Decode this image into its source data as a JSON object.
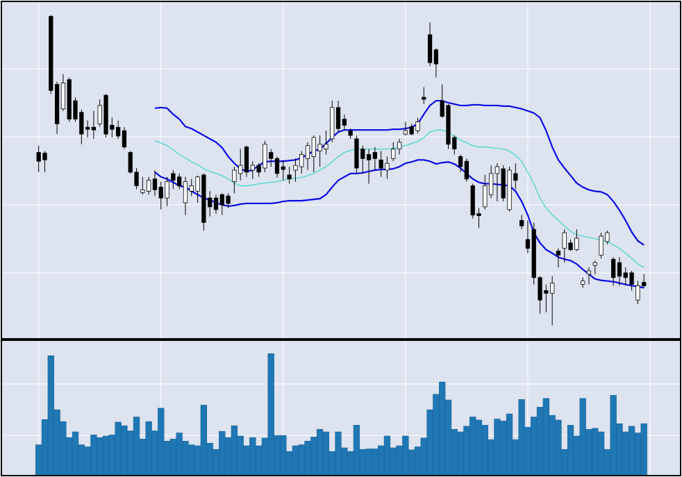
{
  "chart_data": [
    {
      "type": "candlestick",
      "xlim": [
        -6.1,
        105
      ],
      "xticks": [
        0,
        20,
        40,
        60,
        80,
        100
      ],
      "ylim": [
        0.03,
        4.99
      ],
      "yticks": [
        1,
        2,
        3,
        4
      ],
      "grid": true,
      "background": "#dde3ef",
      "up_color": "#ffffff",
      "down_color": "#000000",
      "open": [
        2.77,
        2.76,
        4.77,
        3.77,
        3.41,
        3.84,
        3.53,
        3.36,
        3.14,
        3.14,
        3.19,
        3.61,
        3.17,
        3.14,
        3.09,
        2.77,
        2.48,
        2.18,
        2.2,
        2.38,
        2.26,
        2.1,
        2.46,
        2.41,
        2.03,
        2.2,
        2.2,
        2.44,
        2.1,
        2.1,
        2.15,
        2.13,
        2.34,
        2.46,
        2.85,
        2.51,
        2.58,
        2.54,
        2.77,
        2.68,
        2.56,
        2.44,
        2.51,
        2.56,
        2.68,
        2.71,
        2.79,
        2.82,
        2.97,
        3.43,
        3.26,
        3.09,
        2.97,
        2.82,
        2.74,
        2.77,
        2.66,
        2.51,
        2.68,
        2.82,
        3.04,
        3.15,
        3.09,
        3.58,
        4.5,
        4.28,
        3.53,
        3.46,
        2.99,
        2.71,
        2.64,
        2.28,
        1.87,
        1.97,
        2.15,
        2.46,
        2.53,
        1.93,
        2.46,
        1.77,
        1.49,
        1.64,
        0.93,
        0.74,
        0.7,
        1.32,
        1.36,
        1.44,
        1.34,
        0.83,
        0.98,
        1.11,
        1.26,
        1.46,
        1.2,
        1.15,
        1.0,
        1.0,
        0.6,
        0.86
      ],
      "high": [
        2.87,
        2.79,
        4.79,
        3.81,
        3.92,
        3.87,
        3.58,
        3.4,
        3.24,
        3.38,
        3.55,
        3.63,
        3.28,
        3.24,
        3.14,
        2.79,
        2.54,
        2.41,
        2.41,
        2.51,
        2.34,
        2.41,
        2.51,
        2.46,
        2.41,
        2.38,
        2.43,
        2.46,
        2.2,
        2.15,
        2.17,
        2.17,
        2.56,
        2.82,
        2.87,
        2.64,
        2.61,
        2.94,
        2.82,
        2.71,
        2.66,
        2.56,
        2.68,
        2.79,
        2.92,
        3.02,
        3.02,
        3.09,
        3.53,
        3.53,
        3.33,
        3.12,
        3.02,
        2.87,
        2.82,
        2.85,
        2.79,
        2.71,
        2.92,
        2.97,
        3.22,
        3.19,
        3.28,
        3.73,
        4.68,
        4.3,
        3.77,
        3.48,
        3.02,
        2.74,
        2.68,
        2.31,
        1.95,
        2.44,
        2.58,
        2.61,
        2.58,
        2.56,
        2.61,
        1.85,
        1.77,
        1.74,
        0.95,
        0.83,
        0.95,
        1.36,
        1.64,
        1.49,
        1.64,
        0.93,
        1.08,
        1.18,
        1.59,
        1.62,
        1.23,
        1.23,
        1.08,
        1.03,
        0.88,
        0.98
      ],
      "low": [
        2.48,
        2.48,
        3.63,
        3.04,
        3.38,
        3.22,
        3.22,
        2.89,
        2.99,
        2.97,
        3.15,
        2.99,
        2.99,
        2.97,
        2.82,
        2.46,
        2.23,
        2.15,
        2.15,
        2.13,
        1.93,
        1.98,
        2.23,
        2.23,
        1.85,
        2.13,
        2.03,
        1.62,
        1.83,
        1.87,
        1.85,
        1.95,
        2.17,
        2.36,
        2.41,
        2.38,
        2.41,
        2.48,
        2.56,
        2.4,
        2.36,
        2.31,
        2.34,
        2.46,
        2.51,
        2.48,
        2.56,
        2.74,
        2.92,
        3.07,
        3.09,
        2.97,
        2.46,
        2.46,
        2.31,
        2.51,
        2.41,
        2.38,
        2.64,
        2.74,
        3.02,
        3.02,
        3.05,
        3.48,
        4.04,
        3.87,
        3.28,
        2.82,
        2.74,
        2.48,
        2.34,
        1.8,
        1.66,
        1.93,
        2.1,
        2.05,
        2.05,
        1.9,
        2.23,
        1.64,
        1.29,
        0.83,
        0.4,
        0.42,
        0.23,
        1.08,
        1.15,
        1.32,
        1.32,
        0.78,
        0.83,
        0.98,
        1.21,
        1.42,
        0.81,
        0.81,
        0.81,
        0.74,
        0.54,
        0.78
      ],
      "close": [
        2.64,
        2.66,
        3.68,
        3.19,
        3.79,
        3.26,
        3.26,
        3.04,
        3.11,
        3.1,
        3.46,
        3.04,
        3.11,
        3.01,
        2.85,
        2.48,
        2.28,
        2.22,
        2.36,
        2.22,
        2.1,
        2.34,
        2.36,
        2.28,
        2.34,
        2.28,
        2.41,
        1.74,
        1.97,
        1.93,
        2.0,
        2.02,
        2.51,
        2.58,
        2.48,
        2.58,
        2.48,
        2.89,
        2.68,
        2.46,
        2.52,
        2.38,
        2.58,
        2.74,
        2.87,
        2.99,
        2.89,
        2.89,
        3.43,
        3.12,
        3.17,
        3.02,
        2.54,
        2.68,
        2.66,
        2.68,
        2.54,
        2.61,
        2.82,
        2.92,
        3.09,
        3.04,
        3.22,
        3.55,
        4.09,
        4.07,
        3.3,
        2.89,
        2.82,
        2.56,
        2.38,
        1.85,
        1.84,
        2.28,
        2.46,
        2.56,
        2.1,
        2.51,
        2.36,
        1.69,
        1.36,
        0.93,
        0.6,
        0.7,
        0.85,
        1.26,
        1.59,
        1.34,
        1.51,
        0.88,
        1.03,
        1.15,
        1.54,
        1.59,
        0.93,
        0.95,
        0.93,
        0.83,
        0.81,
        0.81
      ],
      "series": [
        {
          "color": "#0a0ae6",
          "values": [
            null,
            null,
            null,
            null,
            null,
            null,
            null,
            null,
            null,
            null,
            null,
            null,
            null,
            null,
            null,
            null,
            null,
            null,
            null,
            3.42,
            3.43,
            3.42,
            3.33,
            3.26,
            3.15,
            3.12,
            3.07,
            3.02,
            2.97,
            2.92,
            2.84,
            2.71,
            2.61,
            2.53,
            2.49,
            2.51,
            2.58,
            2.63,
            2.64,
            2.64,
            2.64,
            2.65,
            2.66,
            2.69,
            2.74,
            2.79,
            2.82,
            2.9,
            2.99,
            3.07,
            3.1,
            3.1,
            3.1,
            3.1,
            3.1,
            3.1,
            3.1,
            3.1,
            3.11,
            3.11,
            3.12,
            3.14,
            3.19,
            3.33,
            3.46,
            3.53,
            3.53,
            3.5,
            3.48,
            3.46,
            3.46,
            3.47,
            3.47,
            3.46,
            3.46,
            3.46,
            3.45,
            3.45,
            3.43,
            3.41,
            3.38,
            3.35,
            3.28,
            3.09,
            2.85,
            2.66,
            2.54,
            2.43,
            2.32,
            2.26,
            2.22,
            2.2,
            2.19,
            2.15,
            2.05,
            1.92,
            1.77,
            1.6,
            1.47,
            1.41
          ]
        },
        {
          "color": "#48d8cc",
          "values": [
            null,
            null,
            null,
            null,
            null,
            null,
            null,
            null,
            null,
            null,
            null,
            null,
            null,
            null,
            null,
            null,
            null,
            null,
            null,
            2.94,
            2.91,
            2.87,
            2.81,
            2.74,
            2.69,
            2.63,
            2.59,
            2.53,
            2.49,
            2.46,
            2.43,
            2.38,
            2.32,
            2.28,
            2.28,
            2.29,
            2.31,
            2.32,
            2.33,
            2.34,
            2.36,
            2.38,
            2.39,
            2.4,
            2.43,
            2.46,
            2.51,
            2.56,
            2.63,
            2.71,
            2.77,
            2.8,
            2.82,
            2.82,
            2.82,
            2.82,
            2.82,
            2.82,
            2.83,
            2.85,
            2.87,
            2.9,
            2.93,
            2.99,
            3.07,
            3.1,
            3.1,
            3.07,
            3.01,
            2.95,
            2.91,
            2.87,
            2.85,
            2.85,
            2.84,
            2.83,
            2.82,
            2.79,
            2.73,
            2.64,
            2.48,
            2.31,
            2.1,
            1.95,
            1.85,
            1.77,
            1.69,
            1.61,
            1.56,
            1.54,
            1.52,
            1.5,
            1.49,
            1.46,
            1.41,
            1.36,
            1.29,
            1.21,
            1.13,
            1.08
          ]
        },
        {
          "color": "#0a0ae6",
          "values": [
            null,
            null,
            null,
            null,
            null,
            null,
            null,
            null,
            null,
            null,
            null,
            null,
            null,
            null,
            null,
            null,
            null,
            null,
            null,
            2.48,
            2.41,
            2.38,
            2.33,
            2.28,
            2.26,
            2.2,
            2.15,
            2.1,
            2.07,
            2.03,
            2.0,
            1.98,
            1.99,
            2.01,
            2.02,
            2.02,
            2.02,
            2.02,
            2.02,
            2.03,
            2.05,
            2.06,
            2.06,
            2.06,
            2.07,
            2.08,
            2.09,
            2.15,
            2.26,
            2.36,
            2.41,
            2.46,
            2.46,
            2.47,
            2.49,
            2.51,
            2.52,
            2.52,
            2.53,
            2.56,
            2.61,
            2.63,
            2.66,
            2.66,
            2.64,
            2.6,
            2.62,
            2.63,
            2.6,
            2.54,
            2.46,
            2.38,
            2.33,
            2.31,
            2.31,
            2.3,
            2.29,
            2.28,
            2.2,
            2.05,
            1.85,
            1.59,
            1.44,
            1.34,
            1.29,
            1.23,
            1.2,
            1.18,
            1.13,
            1.05,
            0.98,
            0.91,
            0.89,
            0.88,
            0.87,
            0.85,
            0.83,
            0.81,
            0.8,
            0.78
          ]
        }
      ]
    },
    {
      "type": "bar",
      "xlim": [
        -6.1,
        105
      ],
      "xticks": [
        0,
        20,
        40,
        60,
        80,
        100
      ],
      "ylim": [
        0.22,
        2.85
      ],
      "yticks": [
        1,
        2
      ],
      "grid": true,
      "background": "#dde3ef",
      "color": "#1f77b4",
      "values": [
        0.82,
        1.31,
        2.55,
        1.5,
        1.27,
        0.96,
        1.07,
        0.82,
        0.78,
        1.01,
        0.96,
        0.99,
        1.01,
        1.26,
        1.19,
        1.09,
        1.36,
        0.93,
        1.27,
        1.09,
        1.53,
        0.89,
        0.93,
        1.05,
        0.89,
        0.82,
        0.8,
        1.59,
        0.85,
        0.73,
        1.08,
        0.96,
        1.19,
        0.99,
        0.8,
        0.96,
        0.8,
        0.95,
        2.59,
        1.0,
        1.0,
        0.69,
        0.8,
        0.82,
        0.89,
        0.97,
        1.12,
        1.07,
        0.69,
        1.07,
        0.76,
        0.69,
        1.2,
        0.73,
        0.74,
        0.74,
        0.8,
        0.99,
        0.76,
        0.8,
        0.99,
        0.72,
        0.78,
        0.95,
        1.5,
        1.8,
        2.04,
        1.69,
        1.12,
        1.07,
        1.18,
        1.36,
        1.3,
        1.2,
        0.92,
        1.32,
        1.28,
        1.42,
        0.92,
        1.7,
        1.16,
        1.36,
        1.55,
        1.72,
        1.39,
        1.3,
        0.73,
        1.2,
        0.99,
        1.72,
        1.12,
        1.14,
        1.07,
        0.73,
        1.78,
        1.23,
        1.07,
        1.18,
        1.05,
        1.23
      ]
    }
  ]
}
